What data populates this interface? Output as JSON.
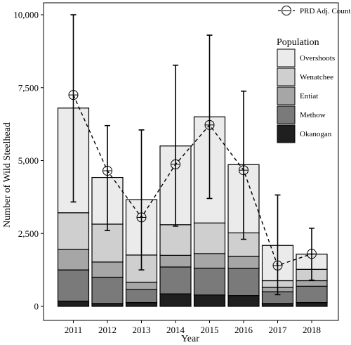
{
  "chart_data": {
    "type": "bar",
    "stacked": true,
    "xlabel": "Year",
    "ylabel": "Number of Wild Steelhead",
    "ylim": [
      0,
      10500
    ],
    "yticks": [
      0,
      2500,
      5000,
      7500,
      10000
    ],
    "ytick_labels": [
      "0",
      "2,500",
      "5,000",
      "7,500",
      "10,000"
    ],
    "categories": [
      "2011",
      "2012",
      "2013",
      "2014",
      "2015",
      "2016",
      "2017",
      "2018"
    ],
    "legend_title": "Population",
    "legend_position": "right",
    "series": [
      {
        "name": "Okanogan",
        "color": "#1f1f1f",
        "values": [
          180,
          100,
          130,
          430,
          390,
          370,
          100,
          130
        ]
      },
      {
        "name": "Methow",
        "color": "#7a7a7a",
        "values": [
          1070,
          900,
          450,
          920,
          920,
          930,
          400,
          560
        ]
      },
      {
        "name": "Entiat",
        "color": "#a6a6a6",
        "values": [
          700,
          520,
          250,
          400,
          500,
          420,
          150,
          190
        ]
      },
      {
        "name": "Wenatchee",
        "color": "#cfcfcf",
        "values": [
          1260,
          1300,
          930,
          1050,
          1050,
          800,
          230,
          390
        ]
      },
      {
        "name": "Overshoots",
        "color": "#ebebeb",
        "values": [
          3590,
          1600,
          1900,
          2700,
          3640,
          2340,
          1210,
          520
        ]
      }
    ],
    "line_series": {
      "name": "PRD Adj. Count",
      "style": "dashed",
      "marker": "open-circle",
      "values": [
        7250,
        4650,
        3050,
        4870,
        6220,
        4670,
        1400,
        1800
      ],
      "error_low": [
        3580,
        2600,
        1250,
        2750,
        3700,
        2300,
        400,
        900
      ],
      "error_high": [
        10000,
        6200,
        6050,
        8270,
        9300,
        7380,
        3820,
        2680
      ]
    }
  }
}
